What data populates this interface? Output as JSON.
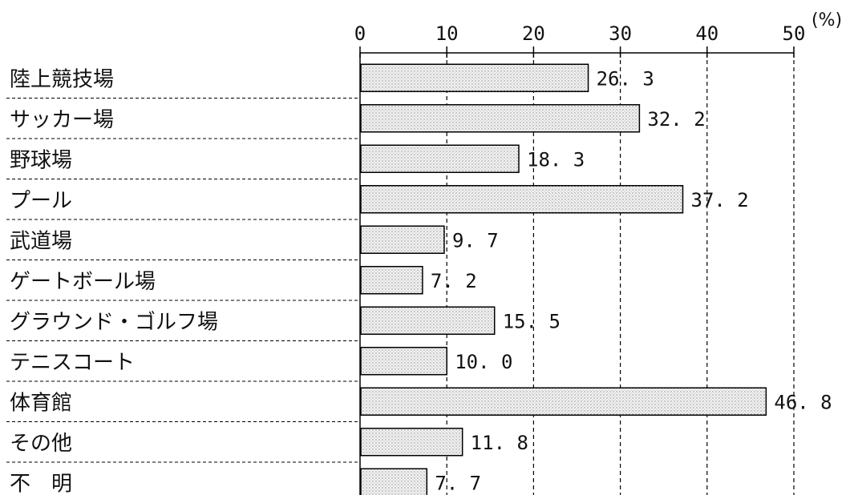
{
  "chart_data": {
    "type": "bar",
    "orientation": "horizontal",
    "categories": [
      "陸上競技場",
      "サッカー場",
      "野球場",
      "プール",
      "武道場",
      "ゲートボール場",
      "グラウンド・ゴルフ場",
      "テニスコート",
      "体育館",
      "その他",
      "不　明"
    ],
    "values": [
      26.3,
      32.2,
      18.3,
      37.2,
      9.7,
      7.2,
      15.5,
      10.0,
      46.8,
      11.8,
      7.7
    ],
    "value_labels": [
      "26. 3",
      "32. 2",
      "18. 3",
      "37. 2",
      "9. 7",
      "7. 2",
      "15. 5",
      "10. 0",
      "46. 8",
      "11. 8",
      "7. 7"
    ],
    "xlim": [
      0,
      50
    ],
    "xticks": [
      0,
      10,
      20,
      30,
      40,
      50
    ],
    "unit": "(%)",
    "grid": "vertical dashed",
    "bar_fill": "#e6e6e6",
    "bar_stroke": "#000000"
  }
}
